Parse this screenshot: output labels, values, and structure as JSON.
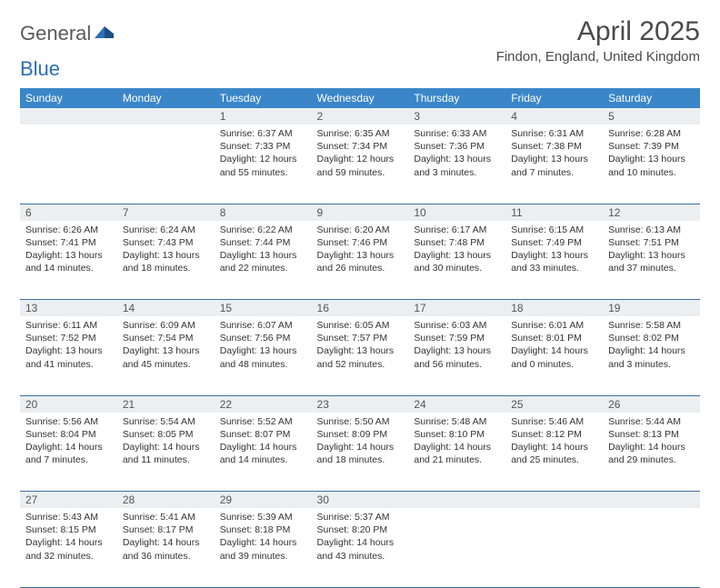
{
  "logo": {
    "text1": "General",
    "text2": "Blue"
  },
  "title": "April 2025",
  "location": "Findon, England, United Kingdom",
  "colors": {
    "header_bg": "#3b86c8",
    "header_text": "#ffffff",
    "daynum_bg": "#eceff1",
    "row_border": "#3b6fa0",
    "logo_gray": "#5a5a5a",
    "logo_blue": "#2c6fb5",
    "body_bg": "#ffffff"
  },
  "day_headers": [
    "Sunday",
    "Monday",
    "Tuesday",
    "Wednesday",
    "Thursday",
    "Friday",
    "Saturday"
  ],
  "weeks": [
    [
      null,
      null,
      {
        "n": "1",
        "sunrise": "6:37 AM",
        "sunset": "7:33 PM",
        "daylight": "12 hours and 55 minutes."
      },
      {
        "n": "2",
        "sunrise": "6:35 AM",
        "sunset": "7:34 PM",
        "daylight": "12 hours and 59 minutes."
      },
      {
        "n": "3",
        "sunrise": "6:33 AM",
        "sunset": "7:36 PM",
        "daylight": "13 hours and 3 minutes."
      },
      {
        "n": "4",
        "sunrise": "6:31 AM",
        "sunset": "7:38 PM",
        "daylight": "13 hours and 7 minutes."
      },
      {
        "n": "5",
        "sunrise": "6:28 AM",
        "sunset": "7:39 PM",
        "daylight": "13 hours and 10 minutes."
      }
    ],
    [
      {
        "n": "6",
        "sunrise": "6:26 AM",
        "sunset": "7:41 PM",
        "daylight": "13 hours and 14 minutes."
      },
      {
        "n": "7",
        "sunrise": "6:24 AM",
        "sunset": "7:43 PM",
        "daylight": "13 hours and 18 minutes."
      },
      {
        "n": "8",
        "sunrise": "6:22 AM",
        "sunset": "7:44 PM",
        "daylight": "13 hours and 22 minutes."
      },
      {
        "n": "9",
        "sunrise": "6:20 AM",
        "sunset": "7:46 PM",
        "daylight": "13 hours and 26 minutes."
      },
      {
        "n": "10",
        "sunrise": "6:17 AM",
        "sunset": "7:48 PM",
        "daylight": "13 hours and 30 minutes."
      },
      {
        "n": "11",
        "sunrise": "6:15 AM",
        "sunset": "7:49 PM",
        "daylight": "13 hours and 33 minutes."
      },
      {
        "n": "12",
        "sunrise": "6:13 AM",
        "sunset": "7:51 PM",
        "daylight": "13 hours and 37 minutes."
      }
    ],
    [
      {
        "n": "13",
        "sunrise": "6:11 AM",
        "sunset": "7:52 PM",
        "daylight": "13 hours and 41 minutes."
      },
      {
        "n": "14",
        "sunrise": "6:09 AM",
        "sunset": "7:54 PM",
        "daylight": "13 hours and 45 minutes."
      },
      {
        "n": "15",
        "sunrise": "6:07 AM",
        "sunset": "7:56 PM",
        "daylight": "13 hours and 48 minutes."
      },
      {
        "n": "16",
        "sunrise": "6:05 AM",
        "sunset": "7:57 PM",
        "daylight": "13 hours and 52 minutes."
      },
      {
        "n": "17",
        "sunrise": "6:03 AM",
        "sunset": "7:59 PM",
        "daylight": "13 hours and 56 minutes."
      },
      {
        "n": "18",
        "sunrise": "6:01 AM",
        "sunset": "8:01 PM",
        "daylight": "14 hours and 0 minutes."
      },
      {
        "n": "19",
        "sunrise": "5:58 AM",
        "sunset": "8:02 PM",
        "daylight": "14 hours and 3 minutes."
      }
    ],
    [
      {
        "n": "20",
        "sunrise": "5:56 AM",
        "sunset": "8:04 PM",
        "daylight": "14 hours and 7 minutes."
      },
      {
        "n": "21",
        "sunrise": "5:54 AM",
        "sunset": "8:05 PM",
        "daylight": "14 hours and 11 minutes."
      },
      {
        "n": "22",
        "sunrise": "5:52 AM",
        "sunset": "8:07 PM",
        "daylight": "14 hours and 14 minutes."
      },
      {
        "n": "23",
        "sunrise": "5:50 AM",
        "sunset": "8:09 PM",
        "daylight": "14 hours and 18 minutes."
      },
      {
        "n": "24",
        "sunrise": "5:48 AM",
        "sunset": "8:10 PM",
        "daylight": "14 hours and 21 minutes."
      },
      {
        "n": "25",
        "sunrise": "5:46 AM",
        "sunset": "8:12 PM",
        "daylight": "14 hours and 25 minutes."
      },
      {
        "n": "26",
        "sunrise": "5:44 AM",
        "sunset": "8:13 PM",
        "daylight": "14 hours and 29 minutes."
      }
    ],
    [
      {
        "n": "27",
        "sunrise": "5:43 AM",
        "sunset": "8:15 PM",
        "daylight": "14 hours and 32 minutes."
      },
      {
        "n": "28",
        "sunrise": "5:41 AM",
        "sunset": "8:17 PM",
        "daylight": "14 hours and 36 minutes."
      },
      {
        "n": "29",
        "sunrise": "5:39 AM",
        "sunset": "8:18 PM",
        "daylight": "14 hours and 39 minutes."
      },
      {
        "n": "30",
        "sunrise": "5:37 AM",
        "sunset": "8:20 PM",
        "daylight": "14 hours and 43 minutes."
      },
      null,
      null,
      null
    ]
  ],
  "labels": {
    "sunrise_prefix": "Sunrise: ",
    "sunset_prefix": "Sunset: ",
    "daylight_prefix": "Daylight: "
  }
}
